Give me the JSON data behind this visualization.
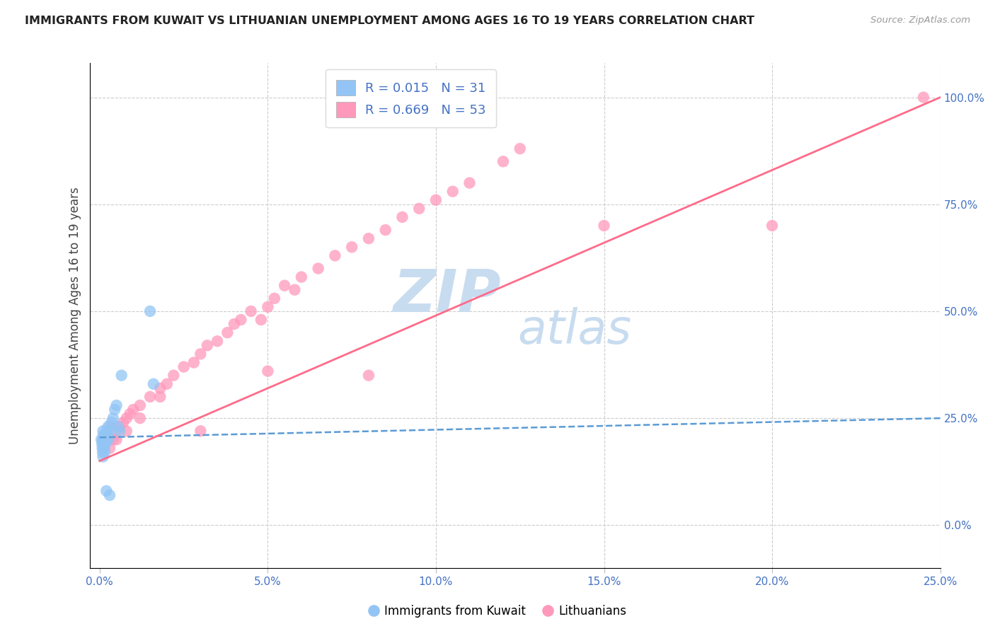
{
  "title": "IMMIGRANTS FROM KUWAIT VS LITHUANIAN UNEMPLOYMENT AMONG AGES 16 TO 19 YEARS CORRELATION CHART",
  "source": "Source: ZipAtlas.com",
  "ylabel_left": "Unemployment Among Ages 16 to 19 years",
  "x_tick_labels": [
    "0.0%",
    "5.0%",
    "10.0%",
    "15.0%",
    "20.0%",
    "25.0%"
  ],
  "x_ticks": [
    0.0,
    5.0,
    10.0,
    15.0,
    20.0,
    25.0
  ],
  "y_tick_labels_right": [
    "0.0%",
    "25.0%",
    "50.0%",
    "75.0%",
    "100.0%"
  ],
  "y_ticks_right": [
    0.0,
    25.0,
    50.0,
    75.0,
    100.0
  ],
  "xlim": [
    -0.3,
    25.0
  ],
  "ylim": [
    -10.0,
    108.0
  ],
  "blue_R": 0.015,
  "blue_N": 31,
  "pink_R": 0.669,
  "pink_N": 53,
  "blue_color": "#92C5F5",
  "pink_color": "#FF99BB",
  "blue_trendline_color": "#5B9BD5",
  "pink_trendline_color": "#FF6B8A",
  "legend_label_blue": "Immigrants from Kuwait",
  "legend_label_pink": "Lithuanians",
  "background_color": "#FFFFFF",
  "grid_color": "#CCCCCC",
  "title_color": "#222222",
  "axis_label_color": "#4472C4",
  "blue_scatter_x": [
    0.05,
    0.07,
    0.08,
    0.09,
    0.1,
    0.1,
    0.11,
    0.12,
    0.13,
    0.14,
    0.15,
    0.16,
    0.17,
    0.18,
    0.19,
    0.2,
    0.22,
    0.25,
    0.27,
    0.3,
    0.35,
    0.4,
    0.45,
    0.5,
    0.55,
    0.6,
    0.65,
    1.5,
    1.6,
    0.2,
    0.3
  ],
  "blue_scatter_y": [
    20.0,
    19.0,
    18.0,
    17.0,
    16.0,
    22.0,
    21.0,
    20.0,
    19.0,
    18.0,
    17.0,
    20.0,
    19.0,
    21.0,
    20.0,
    22.0,
    21.0,
    23.0,
    20.0,
    22.0,
    24.0,
    25.0,
    27.0,
    28.0,
    23.0,
    22.0,
    35.0,
    50.0,
    33.0,
    8.0,
    7.0
  ],
  "pink_scatter_x": [
    0.1,
    0.2,
    0.3,
    0.4,
    0.5,
    0.6,
    0.7,
    0.8,
    0.9,
    1.0,
    1.2,
    1.5,
    1.8,
    2.0,
    2.2,
    2.5,
    2.8,
    3.0,
    3.2,
    3.5,
    3.8,
    4.0,
    4.2,
    4.5,
    4.8,
    5.0,
    5.2,
    5.5,
    5.8,
    6.0,
    6.5,
    7.0,
    7.5,
    8.0,
    8.5,
    9.0,
    9.5,
    10.0,
    10.5,
    11.0,
    12.0,
    12.5,
    15.0,
    20.0,
    24.5,
    0.3,
    0.5,
    0.8,
    1.2,
    1.8,
    3.0,
    5.0,
    8.0
  ],
  "pink_scatter_y": [
    20.0,
    21.0,
    18.0,
    20.0,
    22.0,
    23.0,
    24.0,
    25.0,
    26.0,
    27.0,
    28.0,
    30.0,
    32.0,
    33.0,
    35.0,
    37.0,
    38.0,
    40.0,
    42.0,
    43.0,
    45.0,
    47.0,
    48.0,
    50.0,
    48.0,
    51.0,
    53.0,
    56.0,
    55.0,
    58.0,
    60.0,
    63.0,
    65.0,
    67.0,
    69.0,
    72.0,
    74.0,
    76.0,
    78.0,
    80.0,
    85.0,
    88.0,
    70.0,
    70.0,
    100.0,
    23.0,
    20.0,
    22.0,
    25.0,
    30.0,
    22.0,
    36.0,
    35.0
  ],
  "blue_trendline_y0": 20.5,
  "blue_trendline_y25": 25.0,
  "pink_trendline_y0": 15.0,
  "pink_trendline_y25": 100.0,
  "watermark_zip_color": "#C8DCF0",
  "watermark_atlas_color": "#C8DCF0"
}
